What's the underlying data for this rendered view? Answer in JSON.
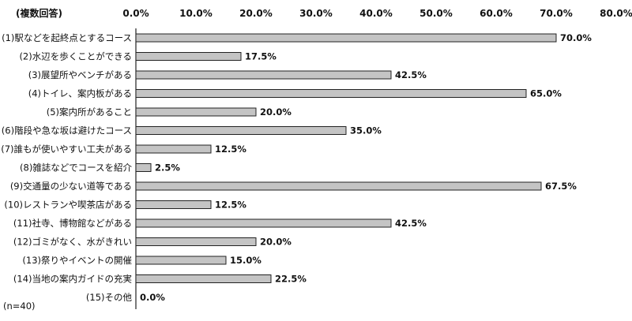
{
  "chart_data": {
    "type": "bar",
    "orientation": "horizontal",
    "header_label": "(複数回答)",
    "note": "(n=40)",
    "categories": [
      "(1)駅などを起終点とするコース",
      "(2)水辺を歩くことができる",
      "(3)展望所やベンチがある",
      "(4)トイレ、案内板がある",
      "(5)案内所があること",
      "(6)階段や急な坂は避けたコース",
      "(7)誰もが使いやすい工夫がある",
      "(8)雑誌などでコースを紹介",
      "(9)交通量の少ない道等である",
      "(10)レストランや喫茶店がある",
      "(11)社寺、博物館などがある",
      "(12)ゴミがなく、水がきれい",
      "(13)祭りやイベントの開催",
      "(14)当地の案内ガイドの充実",
      "(15)その他"
    ],
    "values": [
      70.0,
      17.5,
      42.5,
      65.0,
      20.0,
      35.0,
      12.5,
      2.5,
      67.5,
      12.5,
      42.5,
      20.0,
      15.0,
      22.5,
      0.0
    ],
    "value_labels": [
      "70.0%",
      "17.5%",
      "42.5%",
      "65.0%",
      "20.0%",
      "35.0%",
      "12.5%",
      "2.5%",
      "67.5%",
      "12.5%",
      "42.5%",
      "20.0%",
      "15.0%",
      "22.5%",
      "0.0%"
    ],
    "xlim": [
      0,
      80
    ],
    "x_ticks": [
      0,
      10,
      20,
      30,
      40,
      50,
      60,
      70,
      80
    ],
    "x_tick_labels": [
      "0.0%",
      "10.0%",
      "20.0%",
      "30.0%",
      "40.0%",
      "50.0%",
      "60.0%",
      "70.0%",
      "80.0%"
    ],
    "axis_position": "top",
    "grid": false,
    "legend": "none",
    "bar_color": "#c4c4c4",
    "bar_edge_color": "#222222"
  }
}
